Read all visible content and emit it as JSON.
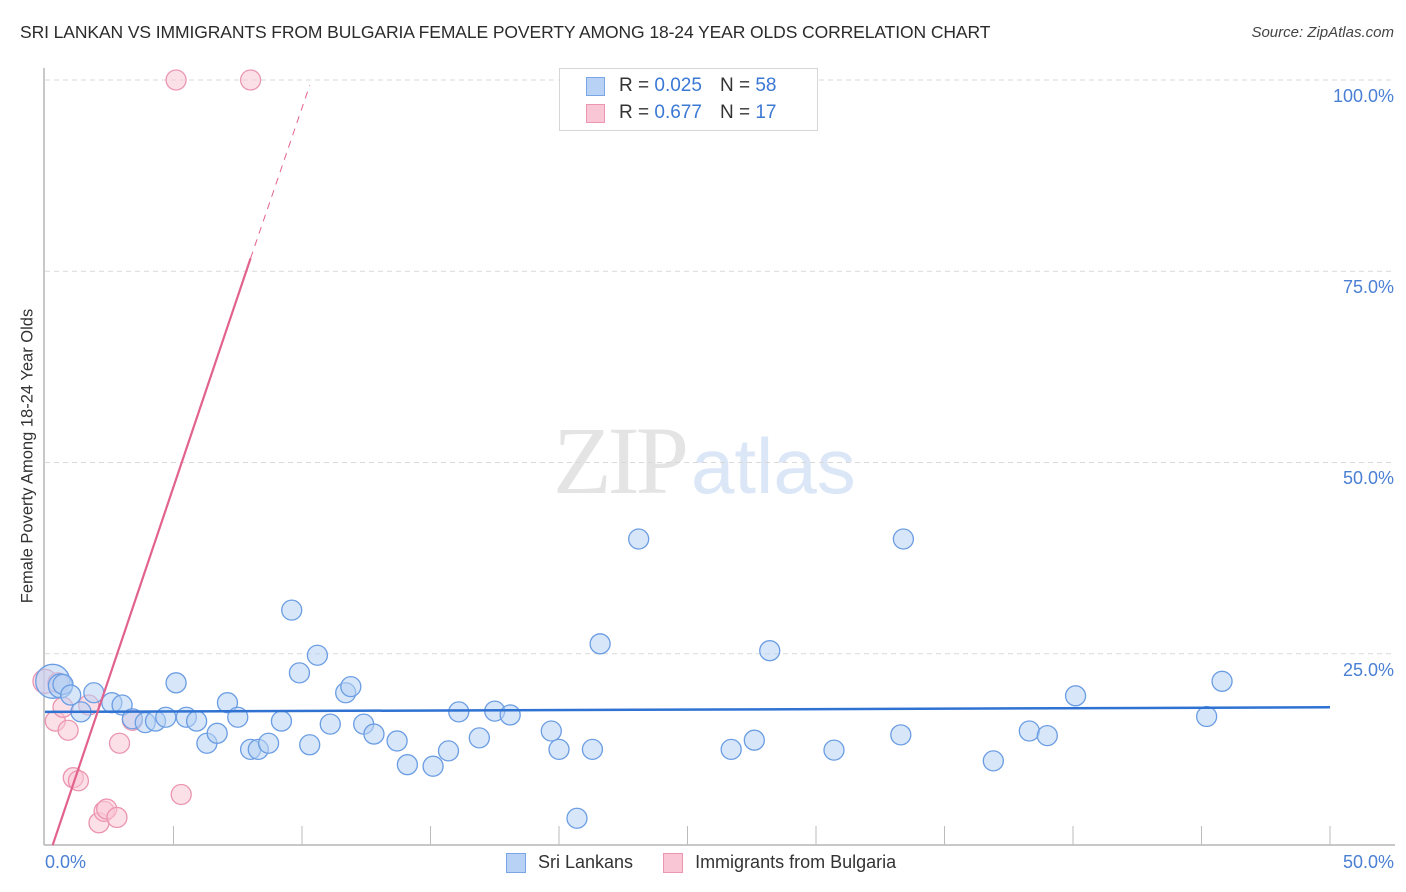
{
  "header": {
    "title": "SRI LANKAN VS IMMIGRANTS FROM BULGARIA FEMALE POVERTY AMONG 18-24 YEAR OLDS CORRELATION CHART",
    "source": "Source: ZipAtlas.com"
  },
  "watermark": {
    "zip": "ZIP",
    "atlas": "atlas"
  },
  "legend": {
    "rows": [
      {
        "r_label": "R =",
        "r_value": "0.025",
        "n_label": "N =",
        "n_value": "58",
        "color": "#7aa6e6"
      },
      {
        "r_label": "R =",
        "r_value": "0.677",
        "n_label": "N =",
        "n_value": "17",
        "color": "#ec96b1"
      }
    ]
  },
  "bottom_legend": [
    "Sri Lankans",
    "Immigrants from Bulgaria"
  ],
  "axes": {
    "ylabel": "Female Poverty Among 18-24 Year Olds",
    "y_ticks": [
      "100.0%",
      "75.0%",
      "50.0%",
      "25.0%"
    ],
    "x_ticks": [
      "0.0%",
      "50.0%"
    ]
  },
  "colors": {
    "blue_fill": "#b7d2f4",
    "blue_stroke": "#6b9de3",
    "blue_line": "#2f72d2",
    "pink_fill": "#f9c6d6",
    "pink_stroke": "#eb95b0",
    "pink_line": "#e2628e",
    "tick_label": "#4a7fd4"
  },
  "chart_data": {
    "type": "scatter",
    "title": "SRI LANKAN VS IMMIGRANTS FROM BULGARIA FEMALE POVERTY AMONG 18-24 YEAR OLDS CORRELATION CHART",
    "xlabel": "",
    "ylabel": "Female Poverty Among 18-24 Year Olds",
    "xlim": [
      0,
      50
    ],
    "ylim": [
      0,
      100
    ],
    "x_tick_labels": [
      "0.0%",
      "50.0%"
    ],
    "y_tick_labels": [
      "25.0%",
      "50.0%",
      "75.0%",
      "100.0%"
    ],
    "grid": "horizontal dashed at 25/50/75/100",
    "legend_position": "top-center and bottom",
    "series": [
      {
        "name": "Sri Lankans",
        "R": 0.025,
        "N": 58,
        "trend": {
          "x": [
            0,
            50
          ],
          "y": [
            17.4,
            18.0
          ]
        },
        "points": [
          [
            0.3,
            21.4
          ],
          [
            0.6,
            20.8
          ],
          [
            0.7,
            21.0
          ],
          [
            1.0,
            19.6
          ],
          [
            1.4,
            17.4
          ],
          [
            1.9,
            19.9
          ],
          [
            2.6,
            18.6
          ],
          [
            3.0,
            18.3
          ],
          [
            3.4,
            16.5
          ],
          [
            3.9,
            16.0
          ],
          [
            4.3,
            16.2
          ],
          [
            4.7,
            16.7
          ],
          [
            5.1,
            21.2
          ],
          [
            5.5,
            16.7
          ],
          [
            5.9,
            16.2
          ],
          [
            6.3,
            13.3
          ],
          [
            6.7,
            14.6
          ],
          [
            7.1,
            18.6
          ],
          [
            7.5,
            16.7
          ],
          [
            8.0,
            12.5
          ],
          [
            8.3,
            12.5
          ],
          [
            8.7,
            13.3
          ],
          [
            9.2,
            16.2
          ],
          [
            9.6,
            30.7
          ],
          [
            9.9,
            22.5
          ],
          [
            10.3,
            13.1
          ],
          [
            10.6,
            24.8
          ],
          [
            11.1,
            15.8
          ],
          [
            11.7,
            19.9
          ],
          [
            11.9,
            20.7
          ],
          [
            12.4,
            15.8
          ],
          [
            12.8,
            14.5
          ],
          [
            13.7,
            13.6
          ],
          [
            14.1,
            10.5
          ],
          [
            15.1,
            10.3
          ],
          [
            15.7,
            12.3
          ],
          [
            16.1,
            17.4
          ],
          [
            16.9,
            14.0
          ],
          [
            17.5,
            17.5
          ],
          [
            18.1,
            17.0
          ],
          [
            19.7,
            14.9
          ],
          [
            20.0,
            12.5
          ],
          [
            20.7,
            3.5
          ],
          [
            21.3,
            12.5
          ],
          [
            21.6,
            26.3
          ],
          [
            23.1,
            40.0
          ],
          [
            26.7,
            12.5
          ],
          [
            27.6,
            13.7
          ],
          [
            28.2,
            25.4
          ],
          [
            30.7,
            12.4
          ],
          [
            33.3,
            14.4
          ],
          [
            33.4,
            40.0
          ],
          [
            36.9,
            11.0
          ],
          [
            38.3,
            14.9
          ],
          [
            39.0,
            14.3
          ],
          [
            40.1,
            19.5
          ],
          [
            45.2,
            16.8
          ],
          [
            45.8,
            21.4
          ]
        ]
      },
      {
        "name": "Immigrants from Bulgaria",
        "R": 0.677,
        "N": 17,
        "trend": {
          "x": [
            0.3,
            8.0
          ],
          "y": [
            0,
            76.7
          ],
          "dashed_extension_to": [
            10.3,
            99.3
          ]
        },
        "points": [
          [
            5.1,
            100.0
          ],
          [
            8.0,
            100.0
          ],
          [
            0.0,
            21.4
          ],
          [
            0.5,
            21.2
          ],
          [
            0.4,
            16.2
          ],
          [
            0.7,
            18.0
          ],
          [
            0.9,
            15.0
          ],
          [
            1.1,
            8.8
          ],
          [
            1.3,
            8.4
          ],
          [
            1.7,
            18.3
          ],
          [
            2.1,
            2.9
          ],
          [
            2.3,
            4.4
          ],
          [
            2.4,
            4.7
          ],
          [
            2.8,
            3.6
          ],
          [
            2.9,
            13.3
          ],
          [
            3.4,
            16.3
          ],
          [
            5.3,
            6.6
          ]
        ]
      }
    ]
  }
}
